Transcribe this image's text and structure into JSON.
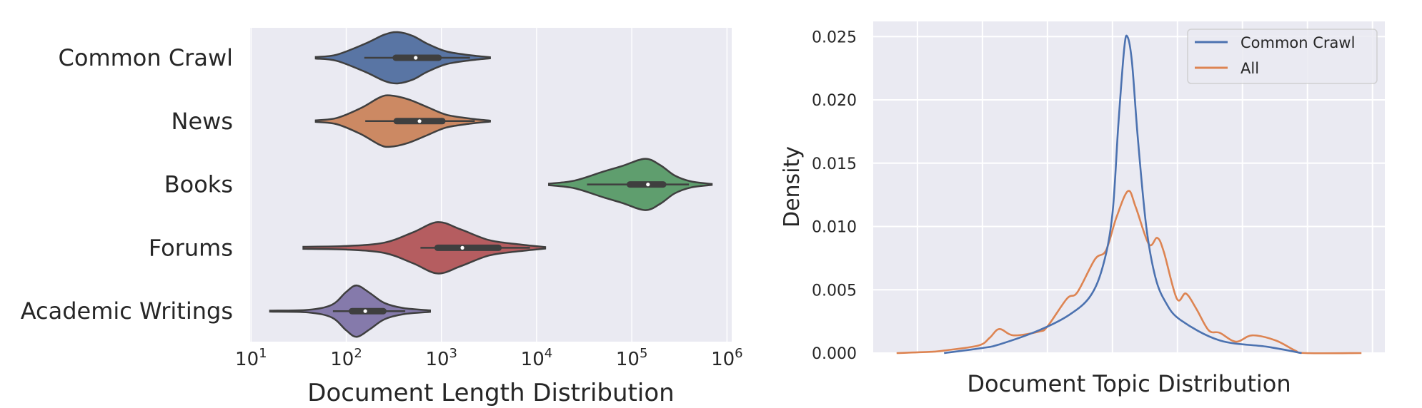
{
  "chart_data": [
    {
      "type": "violin",
      "title": "",
      "xlabel": "Document Length Distribution",
      "ylabel": "",
      "xscale": "log",
      "xlim_log10": [
        0.99,
        6.05
      ],
      "xticks": [
        {
          "exp": 1,
          "base": "10",
          "sup": "1"
        },
        {
          "exp": 2,
          "base": "10",
          "sup": "2"
        },
        {
          "exp": 3,
          "base": "10",
          "sup": "3"
        },
        {
          "exp": 4,
          "base": "10",
          "sup": "4"
        },
        {
          "exp": 5,
          "base": "10",
          "sup": "5"
        },
        {
          "exp": 6,
          "base": "10",
          "sup": "6"
        }
      ],
      "grid": true,
      "categories": [
        "Common Crawl",
        "News",
        "Books",
        "Forums",
        "Academic Writings"
      ],
      "series": [
        {
          "name": "Common Crawl",
          "color": "#5975a4",
          "whisker_log10": [
            2.19,
            3.3
          ],
          "q1_log10": 2.52,
          "median_log10": 2.73,
          "q3_log10": 2.97,
          "profile_log10": [
            [
              1.68,
              0.03
            ],
            [
              1.9,
              0.12
            ],
            [
              2.2,
              0.55
            ],
            [
              2.4,
              0.9
            ],
            [
              2.54,
              1
            ],
            [
              2.7,
              0.85
            ],
            [
              2.85,
              0.55
            ],
            [
              3.05,
              0.25
            ],
            [
              3.3,
              0.1
            ],
            [
              3.51,
              0.02
            ]
          ]
        },
        {
          "name": "News",
          "color": "#cc8963",
          "whisker_log10": [
            2.2,
            3.35
          ],
          "q1_log10": 2.53,
          "median_log10": 2.77,
          "q3_log10": 3.01,
          "profile_log10": [
            [
              1.68,
              0.03
            ],
            [
              1.9,
              0.12
            ],
            [
              2.15,
              0.5
            ],
            [
              2.35,
              0.92
            ],
            [
              2.46,
              1
            ],
            [
              2.65,
              0.85
            ],
            [
              2.85,
              0.55
            ],
            [
              3.05,
              0.25
            ],
            [
              3.3,
              0.1
            ],
            [
              3.51,
              0.02
            ]
          ]
        },
        {
          "name": "Books",
          "color": "#5f9e6e",
          "whisker_log10": [
            4.53,
            5.6
          ],
          "q1_log10": 4.98,
          "median_log10": 5.17,
          "q3_log10": 5.33,
          "profile_log10": [
            [
              4.13,
              0.03
            ],
            [
              4.4,
              0.15
            ],
            [
              4.7,
              0.5
            ],
            [
              4.9,
              0.72
            ],
            [
              5.14,
              1
            ],
            [
              5.3,
              0.75
            ],
            [
              5.45,
              0.35
            ],
            [
              5.62,
              0.12
            ],
            [
              5.84,
              0.02
            ]
          ]
        },
        {
          "name": "Forums",
          "color": "#b55d60",
          "whisker_log10": [
            2.78,
            3.93
          ],
          "q1_log10": 2.96,
          "median_log10": 3.22,
          "q3_log10": 3.6,
          "profile_log10": [
            [
              1.55,
              0.04
            ],
            [
              2.0,
              0.07
            ],
            [
              2.4,
              0.2
            ],
            [
              2.7,
              0.6
            ],
            [
              2.96,
              1
            ],
            [
              3.2,
              0.72
            ],
            [
              3.5,
              0.3
            ],
            [
              3.8,
              0.14
            ],
            [
              4.09,
              0.03
            ]
          ]
        },
        {
          "name": "Academic Writings",
          "color": "#857aab",
          "whisker_log10": [
            1.86,
            2.62
          ],
          "q1_log10": 2.06,
          "median_log10": 2.2,
          "q3_log10": 2.39,
          "profile_log10": [
            [
              1.2,
              0.02
            ],
            [
              1.6,
              0.05
            ],
            [
              1.85,
              0.25
            ],
            [
              2.0,
              0.75
            ],
            [
              2.11,
              1
            ],
            [
              2.25,
              0.7
            ],
            [
              2.4,
              0.32
            ],
            [
              2.6,
              0.12
            ],
            [
              2.88,
              0.03
            ]
          ]
        }
      ]
    },
    {
      "type": "line",
      "title": "",
      "xlabel": "Document Topic Distribution",
      "ylabel": "Density",
      "xlim": [
        -0.68,
        7.19
      ],
      "ylim": [
        0,
        0.0262
      ],
      "yticks": [
        "0.000",
        "0.005",
        "0.010",
        "0.015",
        "0.020",
        "0.025"
      ],
      "ytick_values": [
        0,
        0.005,
        0.01,
        0.015,
        0.02,
        0.025
      ],
      "xgrid_positions": [
        0,
        1,
        2,
        3,
        4,
        5,
        6,
        7
      ],
      "grid": true,
      "legend": "top-right",
      "series": [
        {
          "name": "Common Crawl",
          "color": "#4c72b0",
          "x": [
            0.41,
            1.0,
            1.27,
            1.87,
            2.33,
            2.66,
            2.86,
            3.0,
            3.09,
            3.18,
            3.23,
            3.3,
            3.39,
            3.52,
            3.66,
            3.82,
            4.05,
            4.65,
            5.38,
            5.91
          ],
          "y": [
            0,
            0.0004,
            0.0007,
            0.0018,
            0.003,
            0.0045,
            0.007,
            0.011,
            0.018,
            0.024,
            0.025,
            0.023,
            0.017,
            0.01,
            0.006,
            0.004,
            0.0026,
            0.001,
            0.0005,
            0
          ]
        },
        {
          "name": "All",
          "color": "#dd8452",
          "x": [
            -0.32,
            0.21,
            0.41,
            0.94,
            1.11,
            1.26,
            1.48,
            1.87,
            2.0,
            2.3,
            2.46,
            2.73,
            2.9,
            3.06,
            3.24,
            3.36,
            3.56,
            3.69,
            3.79,
            3.99,
            4.13,
            4.29,
            4.48,
            4.65,
            4.9,
            5.15,
            5.51,
            5.81,
            5.97,
            6.83
          ],
          "y": [
            0,
            0.0001,
            0.0002,
            0.0006,
            0.0012,
            0.0019,
            0.0014,
            0.0017,
            0.0021,
            0.0043,
            0.0048,
            0.0074,
            0.0081,
            0.0107,
            0.0128,
            0.0115,
            0.0086,
            0.0091,
            0.008,
            0.0043,
            0.0047,
            0.0035,
            0.0018,
            0.0016,
            0.0009,
            0.0014,
            0.001,
            0.0002,
            0,
            0
          ]
        }
      ]
    }
  ]
}
